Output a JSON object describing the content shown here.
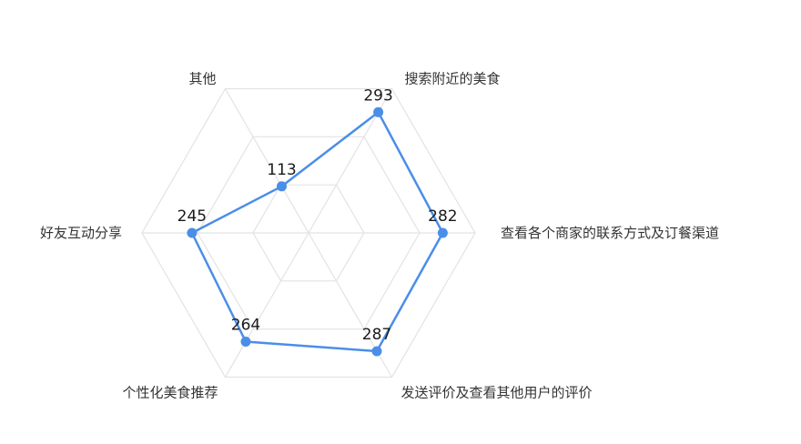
{
  "chart_data": {
    "type": "radar",
    "title": "",
    "indicators": [
      "搜索附近的美食",
      "查看各个商家的联系方式及订餐渠道",
      "发送评价及查看其他用户的评价",
      "个性化美食推荐",
      "好友互动分享",
      "其他"
    ],
    "max": 350,
    "grid_levels": 3,
    "series": [
      {
        "values": [
          293,
          282,
          287,
          264,
          245,
          113
        ],
        "color": "#4a8ee8"
      }
    ],
    "legend": false
  }
}
